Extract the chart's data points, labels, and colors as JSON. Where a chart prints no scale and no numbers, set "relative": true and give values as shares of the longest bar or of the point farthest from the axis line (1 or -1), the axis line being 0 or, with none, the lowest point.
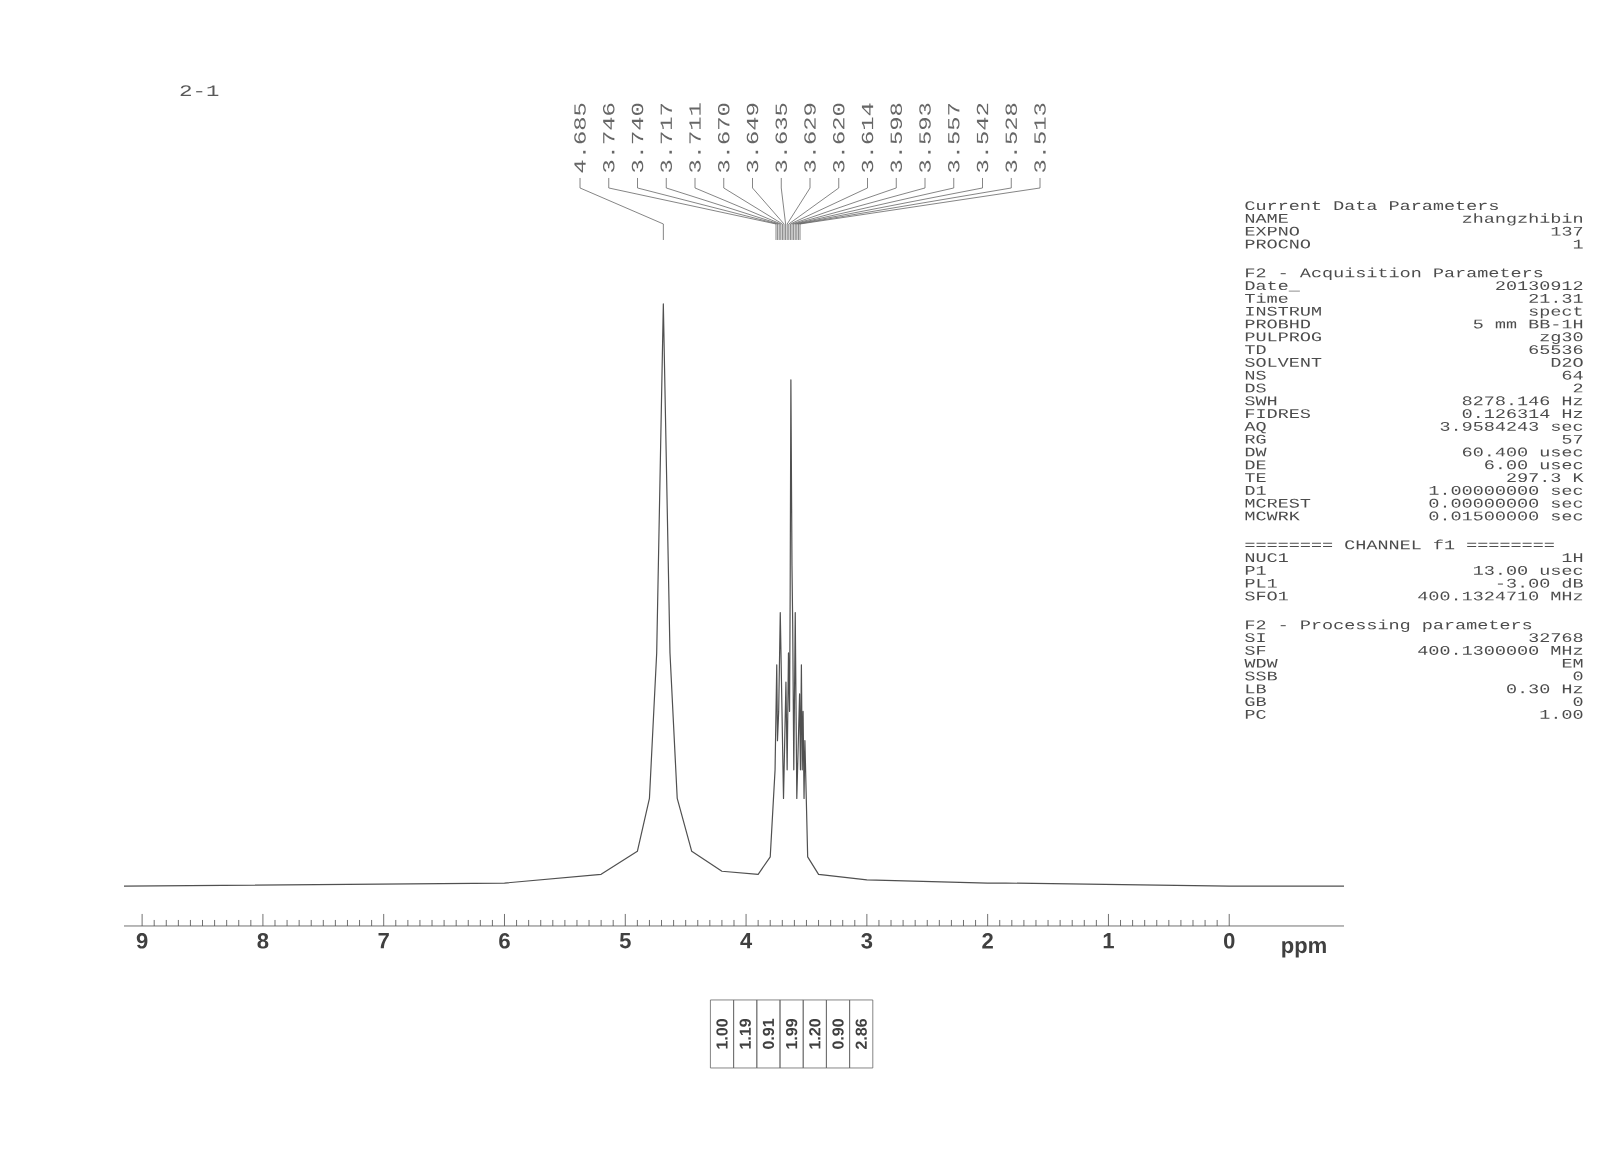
{
  "chart_data": [
    {
      "type": "line",
      "title": "2-1",
      "xlabel": "ppm",
      "relative": true,
      "color": "#505050",
      "xlim": [
        9.15,
        -0.95
      ],
      "xticks": [
        9,
        8,
        7,
        6,
        5,
        4,
        3,
        2,
        1,
        0
      ],
      "x": [
        9.15,
        6,
        5.2,
        4.9,
        4.8,
        4.74,
        4.685,
        4.63,
        4.57,
        4.45,
        4.2,
        3.9,
        3.8,
        3.76,
        3.746,
        3.74,
        3.73,
        3.717,
        3.711,
        3.69,
        3.67,
        3.66,
        3.649,
        3.64,
        3.635,
        3.629,
        3.62,
        3.614,
        3.605,
        3.598,
        3.593,
        3.58,
        3.557,
        3.55,
        3.542,
        3.535,
        3.528,
        3.52,
        3.513,
        3.49,
        3.4,
        3.0,
        2.0,
        1.85,
        0,
        -0.95
      ],
      "values": [
        0.064,
        0.069,
        0.083,
        0.12,
        0.205,
        0.439,
        1,
        0.439,
        0.205,
        0.12,
        0.088,
        0.083,
        0.111,
        0.251,
        0.42,
        0.298,
        0.345,
        0.504,
        0.439,
        0.205,
        0.392,
        0.251,
        0.439,
        0.345,
        0.532,
        0.878,
        0.579,
        0.485,
        0.251,
        0.392,
        0.504,
        0.205,
        0.373,
        0.251,
        0.42,
        0.251,
        0.345,
        0.205,
        0.298,
        0.111,
        0.083,
        0.074,
        0.069,
        0.069,
        0.064,
        0.064
      ],
      "annotations": [
        "4.685",
        "3.746",
        "3.740",
        "3.717",
        "3.711",
        "3.670",
        "3.649",
        "3.635",
        "3.629",
        "3.620",
        "3.614",
        "3.598",
        "3.593",
        "3.557",
        "3.542",
        "3.528",
        "3.513",
        "1.00",
        "1.19",
        "0.91",
        "1.99",
        "1.20",
        "0.90",
        "2.86"
      ]
    },
    {
      "type": "other",
      "title": "Current Data Parameters",
      "annotations": [
        "NAME",
        "zhangzhibin",
        "EXPNO",
        "137",
        "PROCNO",
        "1"
      ]
    },
    {
      "type": "other",
      "title": "F2 - Acquisition Parameters",
      "annotations": [
        "Date_",
        "20130912",
        "Time",
        "21.31",
        "INSTRUM",
        "spect",
        "PROBHD",
        "5 mm BB-1H",
        "PULPROG",
        "zg30",
        "TD",
        "65536",
        "SOLVENT",
        "D2O",
        "NS",
        "64",
        "DS",
        "2",
        "SWH",
        "8278.146 Hz",
        "FIDRES",
        "0.126314 Hz",
        "AQ",
        "3.9584243 sec",
        "RG",
        "57",
        "DW",
        "60.400 usec",
        "DE",
        "6.00 usec",
        "TE",
        "297.3 K",
        "D1",
        "1.00000000 sec",
        "MCREST",
        "0.00000000 sec",
        "MCWRK",
        "0.01500000 sec"
      ]
    },
    {
      "type": "other",
      "title": "======== CHANNEL f1 ========",
      "annotations": [
        "NUC1",
        "1H",
        "P1",
        "13.00 usec",
        "PL1",
        "-3.00 dB",
        "SFO1",
        "400.1324710 MHz"
      ]
    },
    {
      "type": "other",
      "title": "F2 - Processing parameters",
      "annotations": [
        "SI",
        "32768",
        "SF",
        "400.1300000 MHz",
        "WDW",
        "EM",
        "SSB",
        "0",
        "LB",
        "0.30 Hz",
        "GB",
        "0",
        "PC",
        "1.00"
      ]
    }
  ]
}
